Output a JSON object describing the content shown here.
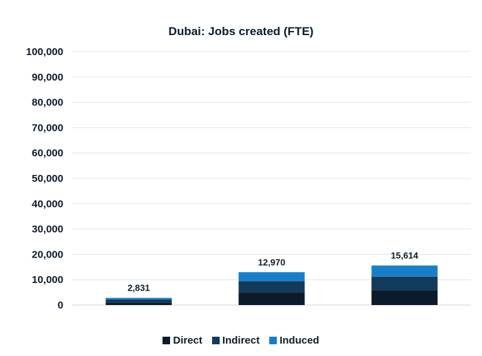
{
  "chart_data": {
    "type": "bar",
    "stacked": true,
    "title": "Dubai: Jobs created (FTE)",
    "xlabel": "",
    "ylabel": "",
    "ylim": [
      0,
      100000
    ],
    "yticks": [
      0,
      10000,
      20000,
      30000,
      40000,
      50000,
      60000,
      70000,
      80000,
      90000,
      100000
    ],
    "ytick_labels": [
      "0",
      "10,000",
      "20,000",
      "30,000",
      "40,000",
      "50,000",
      "60,000",
      "70,000",
      "80,000",
      "90,000",
      "100,000"
    ],
    "categories": [
      "",
      "",
      ""
    ],
    "series": [
      {
        "name": "Direct",
        "color": "#0c1b2b",
        "values": [
          1000,
          5100,
          5900
        ]
      },
      {
        "name": "Indirect",
        "color": "#123a5c",
        "values": [
          1200,
          4300,
          5300
        ]
      },
      {
        "name": "Induced",
        "color": "#1a7ec6",
        "values": [
          631,
          3570,
          4414
        ]
      }
    ],
    "totals": [
      2831,
      12970,
      15614
    ],
    "total_labels": [
      "2,831",
      "12,970",
      "15,614"
    ],
    "grid": true,
    "legend_position": "bottom"
  }
}
